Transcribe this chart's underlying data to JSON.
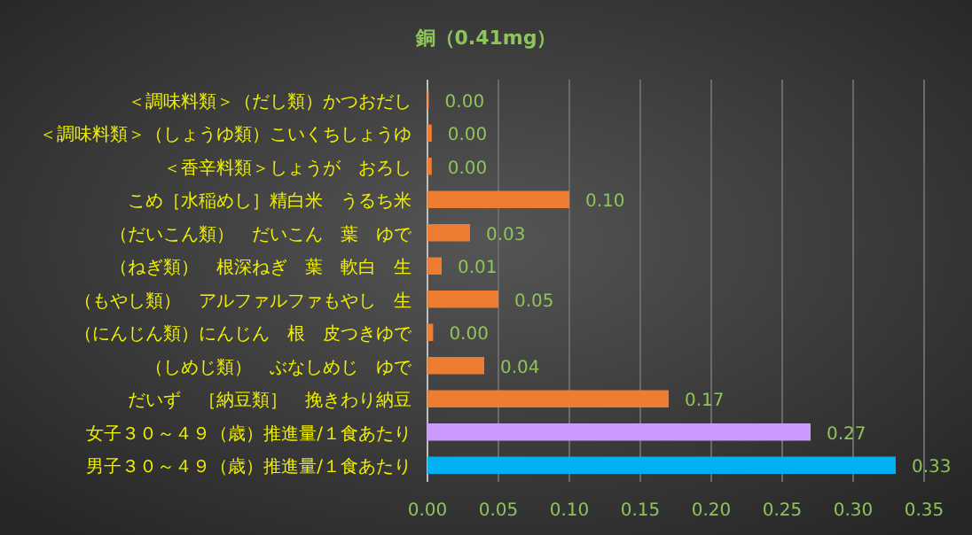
{
  "chart_data": {
    "type": "bar",
    "orientation": "horizontal",
    "title": "銅（0.41mg）",
    "categories": [
      "＜調味料類＞（だし類）かつおだし",
      "＜調味料類＞（しょうゆ類）こいくちしょうゆ",
      "＜香辛料類＞しょうが　おろし",
      "こめ［水稲めし］精白米　うるち米",
      "（だいこん類）　だいこん　葉　ゆで",
      "（ねぎ類）　根深ねぎ　葉　軟白　生",
      "（もやし類）　アルファルファもやし　生",
      "（にんじん類）にんじん　根　皮つきゆで",
      "（しめじ類）　ぶなしめじ　ゆで",
      "だいず　［納豆類］　挽きわり納豆",
      "女子３０～４９（歳）推進量/１食あたり",
      "男子３０～４９（歳）推進量/１食あたり"
    ],
    "values": [
      0.001,
      0.003,
      0.003,
      0.1,
      0.03,
      0.01,
      0.05,
      0.004,
      0.04,
      0.17,
      0.27,
      0.33
    ],
    "value_labels": [
      "0.00",
      "0.00",
      "0.00",
      "0.10",
      "0.03",
      "0.01",
      "0.05",
      "0.00",
      "0.04",
      "0.17",
      "0.27",
      "0.33"
    ],
    "colors": [
      "#ed7d31",
      "#ed7d31",
      "#ed7d31",
      "#ed7d31",
      "#ed7d31",
      "#ed7d31",
      "#ed7d31",
      "#ed7d31",
      "#ed7d31",
      "#ed7d31",
      "#cc99ff",
      "#00b0f0"
    ],
    "xlim": [
      0,
      0.35
    ],
    "xticks": [
      {
        "value": 0,
        "label": "0.00"
      },
      {
        "value": 0.05,
        "label": "0.05"
      },
      {
        "value": 0.1,
        "label": "0.10"
      },
      {
        "value": 0.15,
        "label": "0.15"
      },
      {
        "value": 0.2,
        "label": "0.20"
      },
      {
        "value": 0.25,
        "label": "0.25"
      },
      {
        "value": 0.3,
        "label": "0.30"
      },
      {
        "value": 0.35,
        "label": "0.35"
      }
    ],
    "grid": "x"
  }
}
